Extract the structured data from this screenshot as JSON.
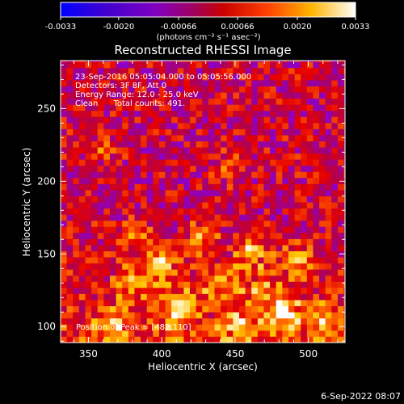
{
  "chart_data": {
    "type": "heatmap",
    "title": "Reconstructed RHESSI Image",
    "xlabel": "Heliocentric X (arcsec)",
    "ylabel": "Heliocentric Y (arcsec)",
    "xlim": [
      331,
      525
    ],
    "ylim": [
      89,
      283
    ],
    "x_ticks": [
      350,
      400,
      450,
      500
    ],
    "y_ticks": [
      100,
      150,
      200,
      250
    ],
    "colorbar": {
      "min": -0.0033,
      "max": 0.0033,
      "tick_values": [
        -0.0033,
        -0.002,
        -0.00066,
        0.00066,
        0.002,
        0.0033
      ],
      "tick_labels": [
        "-0.0033",
        "-0.0020",
        "-0.00066",
        "0.00066",
        "0.0020",
        "0.0033"
      ],
      "unit_label": "(photons cm⁻² s⁻¹ asec⁻²)",
      "colormap": [
        "#0000ff",
        "#5a00c0",
        "#8c00c8",
        "#b4004a",
        "#e60000",
        "#ff6400",
        "#ffc800",
        "#ffffff"
      ]
    },
    "annotations": [
      "23-Sep-2016 05:05:04.000 to 05:05:56.000",
      "Detectors: 3F 8F, Att 0",
      "Energy Range: 12.0 - 25.0 keV",
      "Clean      Total counts: 491."
    ],
    "peak_label": "Position of Peak = [482,110]",
    "peak": [
      482,
      110
    ],
    "bright_sources": [
      {
        "x": 482,
        "y": 110,
        "value": 0.0033
      },
      {
        "x": 453,
        "y": 101,
        "value": 0.003
      },
      {
        "x": 401,
        "y": 144,
        "value": 0.0028
      },
      {
        "x": 463,
        "y": 154,
        "value": 0.0026
      },
      {
        "x": 443,
        "y": 130,
        "value": 0.0025
      },
      {
        "x": 416,
        "y": 118,
        "value": 0.0024
      },
      {
        "x": 382,
        "y": 130,
        "value": 0.0022
      },
      {
        "x": 368,
        "y": 100,
        "value": 0.0021
      },
      {
        "x": 494,
        "y": 147,
        "value": 0.0021
      },
      {
        "x": 427,
        "y": 160,
        "value": 0.002
      },
      {
        "x": 382,
        "y": 160,
        "value": 0.0018
      },
      {
        "x": 408,
        "y": 101,
        "value": 0.0018
      },
      {
        "x": 468,
        "y": 126,
        "value": 0.002
      },
      {
        "x": 510,
        "y": 103,
        "value": 0.0018
      },
      {
        "x": 360,
        "y": 222,
        "value": 0.0014
      },
      {
        "x": 447,
        "y": 210,
        "value": 0.0012
      }
    ]
  },
  "footer": {
    "date": "6-Sep-2022 08:07"
  }
}
